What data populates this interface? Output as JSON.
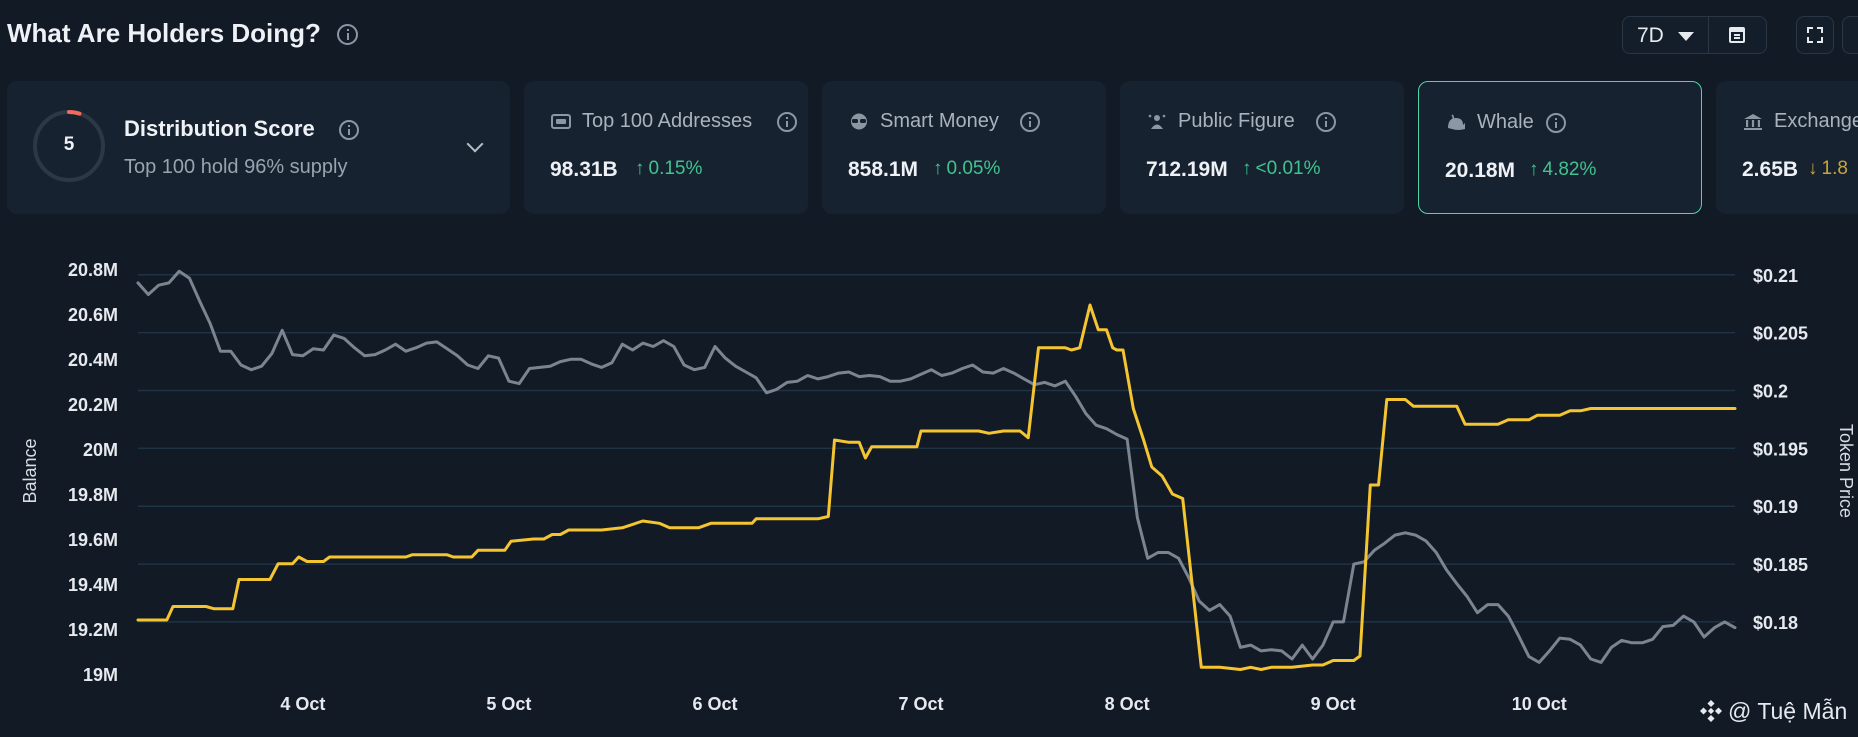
{
  "header": {
    "title": "What Are Holders Doing?",
    "range": "7D"
  },
  "distribution": {
    "score": "5",
    "title": "Distribution Score",
    "subtitle": "Top 100 hold 96% supply",
    "score_fraction": 0.05
  },
  "cards": [
    {
      "label": "Top 100 Addresses",
      "value": "98.31B",
      "change": "0.15%",
      "icon": "wallet-icon"
    },
    {
      "label": "Smart Money",
      "value": "858.1M",
      "change": "0.05%",
      "icon": "sunglasses-icon"
    },
    {
      "label": "Public Figure",
      "value": "712.19M",
      "change": "<0.01%",
      "icon": "star-person-icon"
    },
    {
      "label": "Whale",
      "value": "20.18M",
      "change": "4.82%",
      "icon": "whale-icon"
    },
    {
      "label": "Exchange",
      "value": "2.65B",
      "change": "1.8",
      "icon": "bank-icon"
    }
  ],
  "colors": {
    "accent": "#4fd4a8",
    "up": "#3fc48f",
    "balance_line": "#f4c531",
    "price_line": "#7b848f",
    "score_ring": "#f06b5d"
  },
  "watermark": "@ Tuệ Mẫn",
  "chart_data": {
    "type": "line",
    "ylabel_left": "Balance",
    "ylabel_right": "Token Price",
    "ylim_left": [
      19000000,
      20800000
    ],
    "ylim_right": [
      0.1755,
      0.2105
    ],
    "y_ticks_left": [
      "19M",
      "19.2M",
      "19.4M",
      "19.6M",
      "19.8M",
      "20M",
      "20.2M",
      "20.4M",
      "20.6M",
      "20.8M"
    ],
    "y_ticks_right": [
      "$0.18",
      "$0.185",
      "$0.19",
      "$0.195",
      "$0.2",
      "$0.205",
      "$0.21"
    ],
    "x_ticks": [
      "4 Oct",
      "5 Oct",
      "6 Oct",
      "7 Oct",
      "8 Oct",
      "9 Oct",
      "10 Oct"
    ],
    "x_range_days": [
      3.2,
      10.95
    ],
    "series": [
      {
        "axis": "left",
        "color": "#f4c531",
        "points": [
          [
            3.2,
            19240000
          ],
          [
            3.34,
            19240000
          ],
          [
            3.37,
            19300000
          ],
          [
            3.53,
            19300000
          ],
          [
            3.57,
            19290000
          ],
          [
            3.66,
            19290000
          ],
          [
            3.69,
            19420000
          ],
          [
            3.84,
            19420000
          ],
          [
            3.88,
            19490000
          ],
          [
            3.95,
            19490000
          ],
          [
            3.98,
            19520000
          ],
          [
            4.02,
            19500000
          ],
          [
            4.1,
            19500000
          ],
          [
            4.13,
            19520000
          ],
          [
            4.5,
            19520000
          ],
          [
            4.53,
            19530000
          ],
          [
            4.7,
            19530000
          ],
          [
            4.73,
            19520000
          ],
          [
            4.82,
            19520000
          ],
          [
            4.85,
            19550000
          ],
          [
            4.98,
            19550000
          ],
          [
            5.01,
            19590000
          ],
          [
            5.12,
            19600000
          ],
          [
            5.17,
            19600000
          ],
          [
            5.21,
            19620000
          ],
          [
            5.25,
            19620000
          ],
          [
            5.29,
            19640000
          ],
          [
            5.45,
            19640000
          ],
          [
            5.55,
            19650000
          ],
          [
            5.65,
            19680000
          ],
          [
            5.73,
            19670000
          ],
          [
            5.78,
            19650000
          ],
          [
            5.92,
            19650000
          ],
          [
            5.98,
            19670000
          ],
          [
            6.18,
            19670000
          ],
          [
            6.2,
            19690000
          ],
          [
            6.5,
            19690000
          ],
          [
            6.55,
            19700000
          ],
          [
            6.58,
            20040000
          ],
          [
            6.65,
            20030000
          ],
          [
            6.7,
            20030000
          ],
          [
            6.73,
            19960000
          ],
          [
            6.76,
            20010000
          ],
          [
            6.98,
            20010000
          ],
          [
            7.0,
            20080000
          ],
          [
            7.28,
            20080000
          ],
          [
            7.33,
            20070000
          ],
          [
            7.4,
            20080000
          ],
          [
            7.48,
            20080000
          ],
          [
            7.52,
            20050000
          ],
          [
            7.57,
            20450000
          ],
          [
            7.7,
            20450000
          ],
          [
            7.73,
            20440000
          ],
          [
            7.77,
            20450000
          ],
          [
            7.82,
            20640000
          ],
          [
            7.86,
            20530000
          ],
          [
            7.9,
            20530000
          ],
          [
            7.93,
            20450000
          ],
          [
            7.95,
            20440000
          ],
          [
            7.98,
            20440000
          ],
          [
            8.03,
            20180000
          ],
          [
            8.08,
            20040000
          ],
          [
            8.12,
            19920000
          ],
          [
            8.17,
            19880000
          ],
          [
            8.22,
            19800000
          ],
          [
            8.27,
            19780000
          ],
          [
            8.36,
            19030000
          ],
          [
            8.4,
            19030000
          ],
          [
            8.45,
            19030000
          ],
          [
            8.55,
            19020000
          ],
          [
            8.6,
            19030000
          ],
          [
            8.65,
            19020000
          ],
          [
            8.7,
            19030000
          ],
          [
            8.8,
            19030000
          ],
          [
            8.9,
            19040000
          ],
          [
            8.95,
            19040000
          ],
          [
            9.0,
            19060000
          ],
          [
            9.1,
            19060000
          ],
          [
            9.13,
            19080000
          ],
          [
            9.18,
            19840000
          ],
          [
            9.22,
            19840000
          ],
          [
            9.26,
            20220000
          ],
          [
            9.35,
            20220000
          ],
          [
            9.39,
            20190000
          ],
          [
            9.6,
            20190000
          ],
          [
            9.64,
            20110000
          ],
          [
            9.68,
            20110000
          ],
          [
            9.8,
            20110000
          ],
          [
            9.85,
            20130000
          ],
          [
            9.95,
            20130000
          ],
          [
            9.99,
            20150000
          ],
          [
            10.1,
            20150000
          ],
          [
            10.15,
            20170000
          ],
          [
            10.2,
            20170000
          ],
          [
            10.25,
            20180000
          ],
          [
            10.95,
            20180000
          ]
        ]
      },
      {
        "axis": "right",
        "color": "#7b848f",
        "points": [
          [
            3.2,
            0.2093
          ],
          [
            3.25,
            0.2083
          ],
          [
            3.3,
            0.2091
          ],
          [
            3.35,
            0.2093
          ],
          [
            3.4,
            0.2103
          ],
          [
            3.45,
            0.2097
          ],
          [
            3.5,
            0.2077
          ],
          [
            3.55,
            0.2058
          ],
          [
            3.6,
            0.2034
          ],
          [
            3.65,
            0.2034
          ],
          [
            3.7,
            0.2022
          ],
          [
            3.75,
            0.2018
          ],
          [
            3.8,
            0.2021
          ],
          [
            3.85,
            0.2032
          ],
          [
            3.9,
            0.2052
          ],
          [
            3.95,
            0.2031
          ],
          [
            4.0,
            0.203
          ],
          [
            4.05,
            0.2036
          ],
          [
            4.1,
            0.2035
          ],
          [
            4.15,
            0.2048
          ],
          [
            4.2,
            0.2045
          ],
          [
            4.25,
            0.2037
          ],
          [
            4.3,
            0.203
          ],
          [
            4.35,
            0.2031
          ],
          [
            4.4,
            0.2035
          ],
          [
            4.45,
            0.204
          ],
          [
            4.5,
            0.2034
          ],
          [
            4.55,
            0.2037
          ],
          [
            4.6,
            0.2041
          ],
          [
            4.65,
            0.2042
          ],
          [
            4.7,
            0.2036
          ],
          [
            4.75,
            0.203
          ],
          [
            4.8,
            0.2022
          ],
          [
            4.85,
            0.2019
          ],
          [
            4.9,
            0.203
          ],
          [
            4.95,
            0.2028
          ],
          [
            5.0,
            0.2008
          ],
          [
            5.05,
            0.2006
          ],
          [
            5.1,
            0.2019
          ],
          [
            5.15,
            0.202
          ],
          [
            5.2,
            0.2021
          ],
          [
            5.25,
            0.2025
          ],
          [
            5.3,
            0.2027
          ],
          [
            5.35,
            0.2027
          ],
          [
            5.4,
            0.2023
          ],
          [
            5.45,
            0.202
          ],
          [
            5.5,
            0.2024
          ],
          [
            5.55,
            0.204
          ],
          [
            5.6,
            0.2035
          ],
          [
            5.65,
            0.2041
          ],
          [
            5.7,
            0.2038
          ],
          [
            5.75,
            0.2043
          ],
          [
            5.8,
            0.2038
          ],
          [
            5.85,
            0.2022
          ],
          [
            5.9,
            0.2018
          ],
          [
            5.95,
            0.202
          ],
          [
            6.0,
            0.2038
          ],
          [
            6.05,
            0.2028
          ],
          [
            6.1,
            0.2021
          ],
          [
            6.15,
            0.2016
          ],
          [
            6.2,
            0.2011
          ],
          [
            6.25,
            0.1998
          ],
          [
            6.3,
            0.2001
          ],
          [
            6.35,
            0.2007
          ],
          [
            6.4,
            0.2008
          ],
          [
            6.45,
            0.2013
          ],
          [
            6.5,
            0.201
          ],
          [
            6.55,
            0.2012
          ],
          [
            6.6,
            0.2015
          ],
          [
            6.65,
            0.2016
          ],
          [
            6.7,
            0.2012
          ],
          [
            6.75,
            0.2013
          ],
          [
            6.8,
            0.2012
          ],
          [
            6.85,
            0.2008
          ],
          [
            6.9,
            0.2008
          ],
          [
            6.95,
            0.201
          ],
          [
            7.0,
            0.2014
          ],
          [
            7.05,
            0.2018
          ],
          [
            7.1,
            0.2013
          ],
          [
            7.15,
            0.2015
          ],
          [
            7.2,
            0.2019
          ],
          [
            7.25,
            0.2022
          ],
          [
            7.3,
            0.2016
          ],
          [
            7.35,
            0.2015
          ],
          [
            7.4,
            0.2019
          ],
          [
            7.45,
            0.2015
          ],
          [
            7.5,
            0.201
          ],
          [
            7.55,
            0.2005
          ],
          [
            7.6,
            0.2007
          ],
          [
            7.65,
            0.2004
          ],
          [
            7.7,
            0.2008
          ],
          [
            7.75,
            0.1995
          ],
          [
            7.8,
            0.198
          ],
          [
            7.85,
            0.197
          ],
          [
            7.9,
            0.1967
          ],
          [
            7.95,
            0.1962
          ],
          [
            8.0,
            0.1958
          ],
          [
            8.05,
            0.189
          ],
          [
            8.1,
            0.1855
          ],
          [
            8.15,
            0.186
          ],
          [
            8.2,
            0.186
          ],
          [
            8.25,
            0.1855
          ],
          [
            8.3,
            0.1838
          ],
          [
            8.35,
            0.1818
          ],
          [
            8.4,
            0.181
          ],
          [
            8.45,
            0.1815
          ],
          [
            8.5,
            0.1805
          ],
          [
            8.55,
            0.1778
          ],
          [
            8.6,
            0.178
          ],
          [
            8.65,
            0.1775
          ],
          [
            8.7,
            0.1776
          ],
          [
            8.75,
            0.1775
          ],
          [
            8.8,
            0.1768
          ],
          [
            8.85,
            0.178
          ],
          [
            8.9,
            0.1768
          ],
          [
            8.95,
            0.178
          ],
          [
            9.0,
            0.18
          ],
          [
            9.05,
            0.18
          ],
          [
            9.1,
            0.185
          ],
          [
            9.15,
            0.1852
          ],
          [
            9.2,
            0.1862
          ],
          [
            9.25,
            0.1868
          ],
          [
            9.3,
            0.1875
          ],
          [
            9.35,
            0.1877
          ],
          [
            9.4,
            0.1875
          ],
          [
            9.45,
            0.187
          ],
          [
            9.5,
            0.186
          ],
          [
            9.55,
            0.1845
          ],
          [
            9.6,
            0.1833
          ],
          [
            9.65,
            0.1822
          ],
          [
            9.7,
            0.1808
          ],
          [
            9.75,
            0.1815
          ],
          [
            9.8,
            0.1815
          ],
          [
            9.85,
            0.1805
          ],
          [
            9.9,
            0.1788
          ],
          [
            9.95,
            0.177
          ],
          [
            10.0,
            0.1765
          ],
          [
            10.05,
            0.1775
          ],
          [
            10.1,
            0.1786
          ],
          [
            10.15,
            0.1785
          ],
          [
            10.2,
            0.178
          ],
          [
            10.25,
            0.1768
          ],
          [
            10.3,
            0.1765
          ],
          [
            10.35,
            0.1778
          ],
          [
            10.4,
            0.1784
          ],
          [
            10.45,
            0.1782
          ],
          [
            10.5,
            0.1782
          ],
          [
            10.55,
            0.1785
          ],
          [
            10.6,
            0.1796
          ],
          [
            10.65,
            0.1797
          ],
          [
            10.7,
            0.1805
          ],
          [
            10.75,
            0.18
          ],
          [
            10.8,
            0.1787
          ],
          [
            10.85,
            0.1795
          ],
          [
            10.9,
            0.18
          ],
          [
            10.95,
            0.1795
          ]
        ]
      }
    ]
  }
}
